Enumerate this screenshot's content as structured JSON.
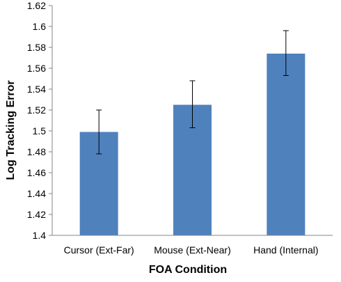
{
  "chart_data": {
    "type": "bar",
    "title": "",
    "xlabel": "FOA Condition",
    "ylabel": "Log Tracking Error",
    "categories": [
      "Cursor (Ext-Far)",
      "Mouse (Ext-Near)",
      "Hand (Internal)"
    ],
    "values": [
      1.499,
      1.525,
      1.574
    ],
    "error_bars": [
      {
        "low": 1.478,
        "high": 1.52
      },
      {
        "low": 1.503,
        "high": 1.548
      },
      {
        "low": 1.553,
        "high": 1.596
      }
    ],
    "ylim": [
      1.4,
      1.62
    ],
    "yticks": [
      "1.4",
      "1.42",
      "1.44",
      "1.46",
      "1.48",
      "1.5",
      "1.52",
      "1.54",
      "1.56",
      "1.58",
      "1.6",
      "1.62"
    ],
    "grid": false,
    "legend": "none",
    "colors": {
      "bar": "#4f81bd",
      "bar_stroke": "#41719c",
      "axis": "#868686",
      "error_bar": "#000000",
      "text": "#000000"
    }
  }
}
